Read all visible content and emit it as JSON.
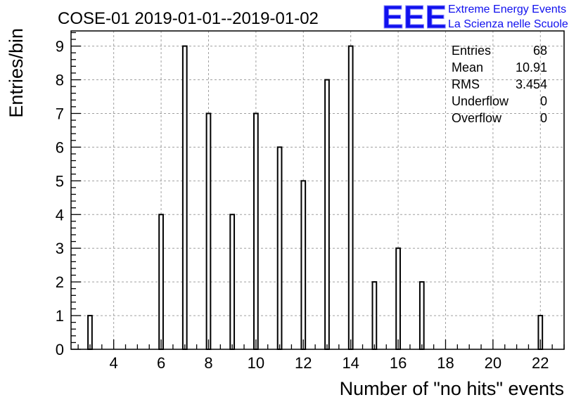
{
  "chart_data": {
    "type": "bar",
    "title": "COSE-01 2019-01-01--2019-01-02",
    "xlabel": "Number of \"no hits\" events",
    "ylabel": "Entries/bin",
    "xlim": [
      2.2,
      23.0
    ],
    "ylim": [
      0,
      9.45
    ],
    "grid": true,
    "x_ticks": [
      4,
      6,
      8,
      10,
      12,
      14,
      16,
      18,
      20,
      22
    ],
    "y_ticks": [
      0,
      1,
      2,
      3,
      4,
      5,
      6,
      7,
      8,
      9
    ],
    "bins": [
      {
        "x": 3,
        "value": 1
      },
      {
        "x": 6,
        "value": 4
      },
      {
        "x": 7,
        "value": 9
      },
      {
        "x": 8,
        "value": 7
      },
      {
        "x": 9,
        "value": 4
      },
      {
        "x": 10,
        "value": 7
      },
      {
        "x": 11,
        "value": 6
      },
      {
        "x": 12,
        "value": 5
      },
      {
        "x": 13,
        "value": 8
      },
      {
        "x": 14,
        "value": 9
      },
      {
        "x": 15,
        "value": 2
      },
      {
        "x": 16,
        "value": 3
      },
      {
        "x": 17,
        "value": 2
      },
      {
        "x": 22,
        "value": 1
      }
    ],
    "stats": [
      {
        "label": "Entries",
        "value": "68"
      },
      {
        "label": "Mean",
        "value": "10.91"
      },
      {
        "label": "RMS",
        "value": "3.454"
      },
      {
        "label": "Underflow",
        "value": "0"
      },
      {
        "label": "Overflow",
        "value": "0"
      }
    ]
  },
  "logo": {
    "mark": "EEE",
    "line1": "Extreme Energy Events",
    "line2": "La Scienza nelle Scuole",
    "color": "#1010ee"
  }
}
